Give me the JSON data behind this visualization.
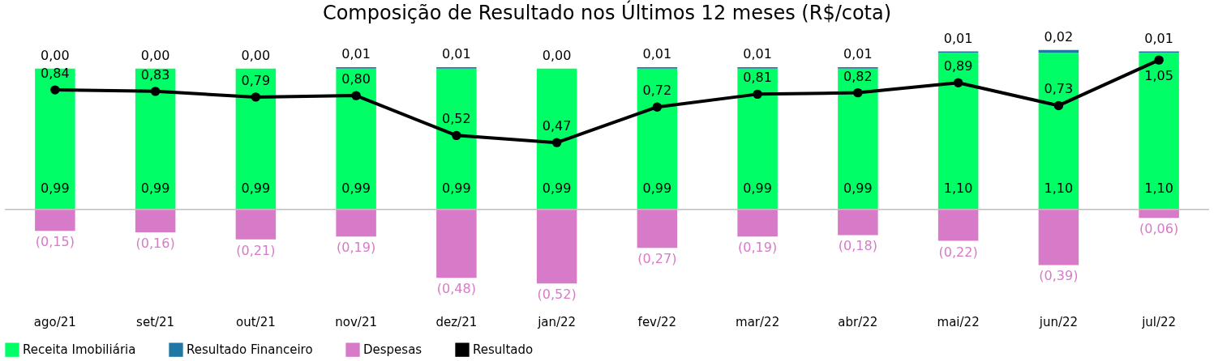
{
  "chart_data": {
    "type": "bar",
    "stacked": true,
    "title": "Composição de Resultado nos Últimos 12 meses (R$/cota)",
    "categories": [
      "ago/21",
      "set/21",
      "out/21",
      "nov/21",
      "dez/21",
      "jan/22",
      "fev/22",
      "mar/22",
      "abr/22",
      "mai/22",
      "jun/22",
      "jul/22"
    ],
    "series": [
      {
        "name": "Receita Imobiliária",
        "color": "#00ff66",
        "values": [
          0.99,
          0.99,
          0.99,
          0.99,
          0.99,
          0.99,
          0.99,
          0.99,
          0.99,
          1.1,
          1.1,
          1.1
        ],
        "value_labels": [
          "0,99",
          "0,99",
          "0,99",
          "0,99",
          "0,99",
          "0,99",
          "0,99",
          "0,99",
          "0,99",
          "1,10",
          "1,10",
          "1,10"
        ]
      },
      {
        "name": "Resultado Financeiro",
        "color": "#1f77a4",
        "values": [
          0.0,
          0.0,
          0.0,
          0.01,
          0.01,
          0.0,
          0.01,
          0.01,
          0.01,
          0.01,
          0.02,
          0.01
        ],
        "value_labels": [
          "0,00",
          "0,00",
          "0,00",
          "0,01",
          "0,01",
          "0,00",
          "0,01",
          "0,01",
          "0,01",
          "0,01",
          "0,02",
          "0,01"
        ]
      },
      {
        "name": "Despesas",
        "color": "#d77ac8",
        "values": [
          -0.15,
          -0.16,
          -0.21,
          -0.19,
          -0.48,
          -0.52,
          -0.27,
          -0.19,
          -0.18,
          -0.22,
          -0.39,
          -0.06
        ],
        "value_labels": [
          "(0,15)",
          "(0,16)",
          "(0,21)",
          "(0,19)",
          "(0,48)",
          "(0,52)",
          "(0,27)",
          "(0,19)",
          "(0,18)",
          "(0,22)",
          "(0,39)",
          "(0,06)"
        ]
      },
      {
        "name": "Resultado",
        "type": "line",
        "color": "#000000",
        "marker": "circle",
        "values": [
          0.84,
          0.83,
          0.79,
          0.8,
          0.52,
          0.47,
          0.72,
          0.81,
          0.82,
          0.89,
          0.73,
          1.05
        ],
        "value_labels": [
          "0,84",
          "0,83",
          "0,79",
          "0,80",
          "0,52",
          "0,47",
          "0,72",
          "0,81",
          "0,82",
          "0,89",
          "0,73",
          "1,05"
        ]
      }
    ],
    "ref_lines": [
      {
        "axis": "y",
        "value": 0,
        "color": "#bfbfbf"
      }
    ],
    "legend": "bottom",
    "grid": false
  }
}
